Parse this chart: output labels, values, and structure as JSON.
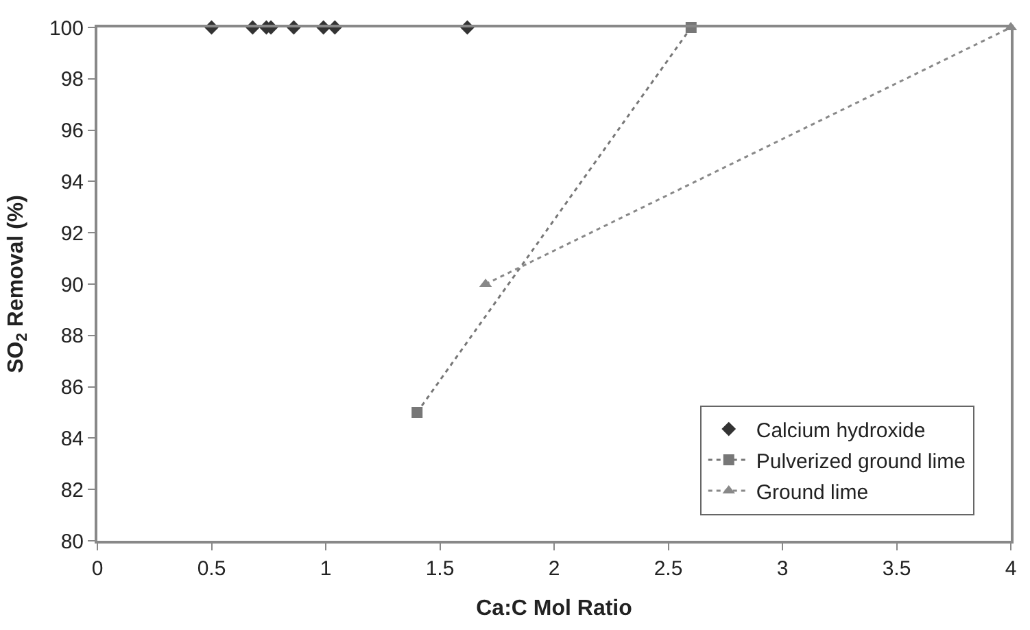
{
  "chart_data": {
    "type": "scatter",
    "xlabel": "Ca:C Mol Ratio",
    "ylabel": "SO$_{2}$ Removal (%)",
    "xlim": [
      0,
      4
    ],
    "xticks": [
      0,
      0.5,
      1,
      1.5,
      2,
      2.5,
      3,
      3.5,
      4
    ],
    "ylim": [
      80,
      100
    ],
    "yticks": [
      80,
      82,
      84,
      86,
      88,
      90,
      92,
      94,
      96,
      98,
      100
    ],
    "legend": "bottom right",
    "series": [
      {
        "name": "Calcium hydroxide",
        "color": "#333333",
        "marker": "diamond",
        "x": [
          0.5,
          0.68,
          0.74,
          0.76,
          0.86,
          0.99,
          1.04,
          1.62
        ],
        "values": [
          100,
          100,
          100,
          100,
          100,
          100,
          100,
          100
        ]
      },
      {
        "name": "Pulverized ground lime",
        "type": "line",
        "color": "#777777",
        "marker": "square",
        "line_style": "dotted",
        "x": [
          1.4,
          2.6
        ],
        "values": [
          85,
          100
        ]
      },
      {
        "name": "Ground lime",
        "type": "line",
        "color": "#888888",
        "marker": "triangle",
        "line_style": "dotted",
        "x": [
          1.7,
          4
        ],
        "values": [
          90,
          100
        ]
      }
    ]
  }
}
